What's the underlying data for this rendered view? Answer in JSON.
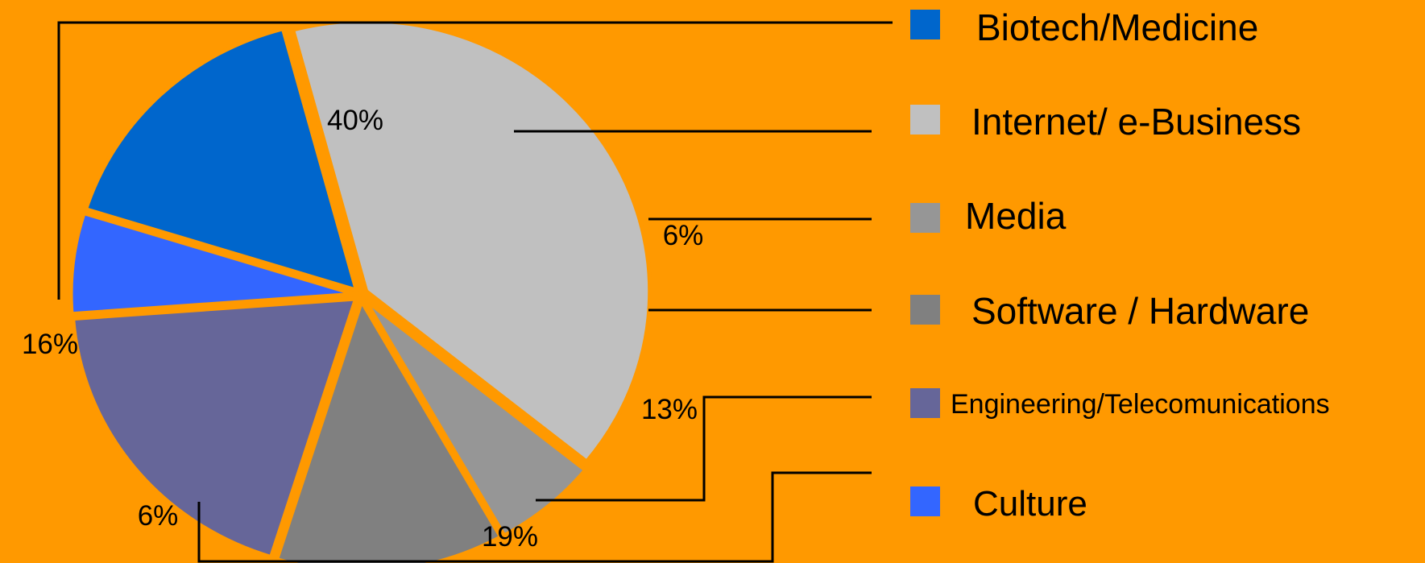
{
  "chart_data": {
    "type": "pie",
    "categories": [
      "Biotech/Medicine",
      "Internet/ e-Business",
      "Media",
      "Software / Hardware",
      "Engineering/Telecomunications",
      "Culture"
    ],
    "values": [
      16,
      40,
      6,
      13,
      19,
      6
    ],
    "value_labels": [
      "16%",
      "40%",
      "6%",
      "13%",
      "19%",
      "6%"
    ],
    "colors": [
      "#0066CC",
      "#C0C0C0",
      "#969696",
      "#808080",
      "#666699",
      "#3366FF"
    ],
    "legend_position": "right",
    "background": "#FF9900",
    "slices_exploded": true
  }
}
